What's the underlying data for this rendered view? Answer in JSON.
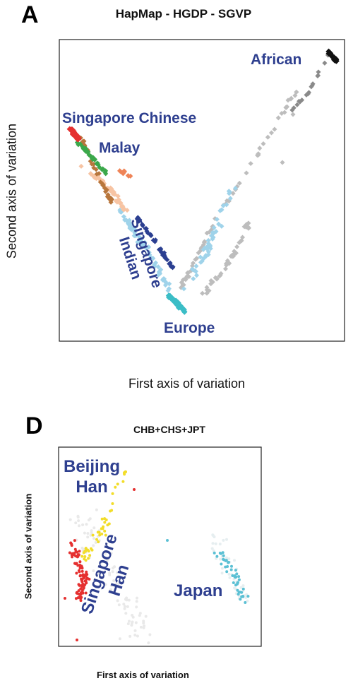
{
  "panel_a": {
    "letter": "A",
    "title": "HapMap - HGDP - SGVP",
    "xlabel": "First axis of variation",
    "ylabel": "Second axis of variation",
    "labels": {
      "african": "African",
      "singapore_chinese": "Singapore Chinese",
      "malay": "Malay",
      "singapore_indian": "Singapore\nIndian",
      "europe": "Europe"
    }
  },
  "panel_d": {
    "letter": "D",
    "title": "CHB+CHS+JPT",
    "xlabel": "First axis of variation",
    "ylabel": "Second axis of variation",
    "labels": {
      "beijing_han": "Beijing\nHan",
      "singapore_han": "Singapore\nHan",
      "japan": "Japan"
    }
  },
  "colors": {
    "african": "#111111",
    "african_gray": "#8a8a8a",
    "light_gray": "#bdbdbd",
    "chinese_red": "#e53030",
    "malay_green": "#3aa84a",
    "brown": "#b8763c",
    "peach": "#f7c4a3",
    "orange": "#ef8457",
    "indian_navy": "#2b3f91",
    "light_blue": "#9fd3ea",
    "teal": "#3bbdc6",
    "yellow": "#f2dd2a",
    "japan_cyan": "#5bc0d4",
    "label_blue": "#2e3f8f"
  },
  "chart_data": [
    {
      "type": "scatter",
      "title": "HapMap - HGDP - SGVP",
      "xlabel": "First axis of variation",
      "ylabel": "Second axis of variation",
      "grid": false,
      "series": [
        {
          "name": "African",
          "color": "#111111",
          "points": [
            [
              0.97,
              0.96
            ],
            [
              0.96,
              0.95
            ],
            [
              0.98,
              0.97
            ],
            [
              0.95,
              0.94
            ],
            [
              0.97,
              0.94
            ],
            [
              0.96,
              0.97
            ],
            [
              0.98,
              0.95
            ],
            [
              0.94,
              0.93
            ]
          ]
        },
        {
          "name": "Singapore Chinese",
          "color": "#e53030",
          "points": [
            [
              0.04,
              0.72
            ],
            [
              0.05,
              0.7
            ],
            [
              0.06,
              0.71
            ],
            [
              0.05,
              0.73
            ],
            [
              0.07,
              0.69
            ],
            [
              0.06,
              0.68
            ],
            [
              0.04,
              0.7
            ],
            [
              0.08,
              0.7
            ],
            [
              0.07,
              0.72
            ],
            [
              0.05,
              0.68
            ]
          ]
        },
        {
          "name": "Malay",
          "color": "#3aa84a",
          "points": [
            [
              0.09,
              0.68
            ],
            [
              0.11,
              0.66
            ],
            [
              0.12,
              0.64
            ],
            [
              0.1,
              0.63
            ],
            [
              0.13,
              0.62
            ],
            [
              0.14,
              0.6
            ],
            [
              0.15,
              0.59
            ],
            [
              0.18,
              0.58
            ],
            [
              0.2,
              0.56
            ],
            [
              0.21,
              0.55
            ]
          ]
        },
        {
          "name": "Singapore Indian",
          "color": "#2b3f91",
          "points": [
            [
              0.31,
              0.44
            ],
            [
              0.33,
              0.42
            ],
            [
              0.35,
              0.4
            ],
            [
              0.36,
              0.38
            ],
            [
              0.38,
              0.36
            ],
            [
              0.39,
              0.34
            ],
            [
              0.4,
              0.32
            ],
            [
              0.41,
              0.3
            ],
            [
              0.42,
              0.28
            ]
          ]
        },
        {
          "name": "Europe",
          "color": "#3bbdc6",
          "points": [
            [
              0.42,
              0.14
            ],
            [
              0.44,
              0.12
            ],
            [
              0.46,
              0.1
            ],
            [
              0.48,
              0.09
            ],
            [
              0.5,
              0.08
            ],
            [
              0.52,
              0.09
            ],
            [
              0.54,
              0.1
            ]
          ]
        }
      ]
    },
    {
      "type": "scatter",
      "title": "CHB+CHS+JPT",
      "xlabel": "First axis of variation",
      "ylabel": "Second axis of variation",
      "grid": false,
      "series": [
        {
          "name": "Beijing Han",
          "color": "#f2dd2a",
          "points": [
            [
              0.3,
              0.88
            ],
            [
              0.36,
              0.84
            ],
            [
              0.32,
              0.8
            ],
            [
              0.38,
              0.76
            ],
            [
              0.28,
              0.72
            ],
            [
              0.34,
              0.7
            ],
            [
              0.26,
              0.62
            ],
            [
              0.3,
              0.58
            ]
          ]
        },
        {
          "name": "Singapore Han",
          "color": "#e53030",
          "points": [
            [
              0.12,
              0.52
            ],
            [
              0.16,
              0.48
            ],
            [
              0.1,
              0.44
            ],
            [
              0.2,
              0.4
            ],
            [
              0.14,
              0.36
            ],
            [
              0.18,
              0.3
            ],
            [
              0.08,
              0.28
            ],
            [
              0.22,
              0.26
            ],
            [
              0.13,
              0.04
            ]
          ]
        },
        {
          "name": "Japan",
          "color": "#5bc0d4",
          "points": [
            [
              0.74,
              0.46
            ],
            [
              0.8,
              0.44
            ],
            [
              0.86,
              0.4
            ],
            [
              0.78,
              0.36
            ],
            [
              0.9,
              0.34
            ],
            [
              0.84,
              0.3
            ],
            [
              0.92,
              0.42
            ],
            [
              0.88,
              0.26
            ]
          ]
        }
      ]
    }
  ]
}
